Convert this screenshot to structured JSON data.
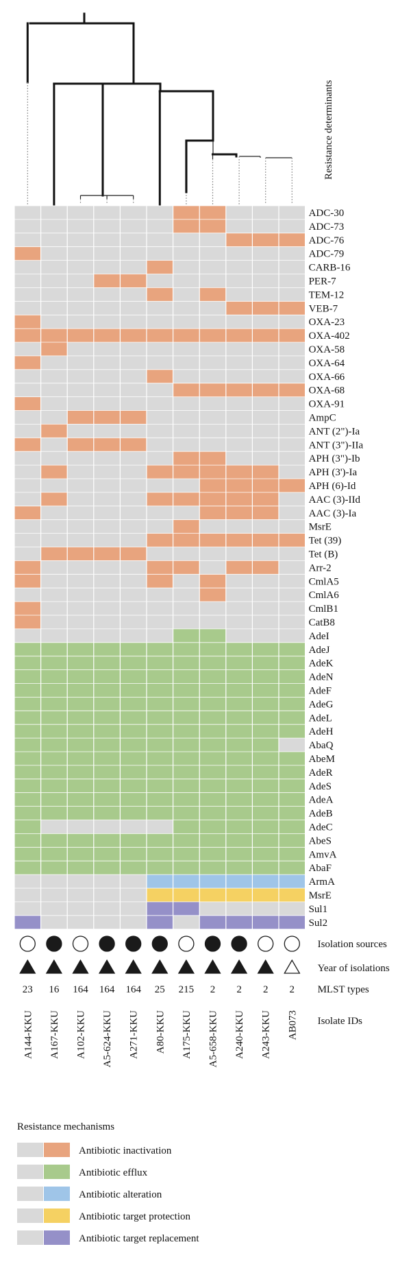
{
  "chart_data": {
    "type": "heatmap",
    "dendrogram_label": "Resistance determinants",
    "isolates": [
      "A144-KKU",
      "A167-KKU",
      "A102-KKU",
      "A5-624-KKU",
      "A271-KKU",
      "A80-KKU",
      "A175-KKU",
      "A5-658-KKU",
      "A240-KKU",
      "A243-KKU",
      "AB073"
    ],
    "mlst_label": "MLST types",
    "mlst": [
      "23",
      "16",
      "164",
      "164",
      "164",
      "25",
      "215",
      "2",
      "2",
      "2",
      "2"
    ],
    "isolate_ids_label": "Isolate IDs",
    "isolation_sources_label": "Isolation sources",
    "isolation_sources": [
      "open",
      "filled",
      "open",
      "filled",
      "filled",
      "filled",
      "open",
      "filled",
      "filled",
      "open",
      "open"
    ],
    "year_label": "Year of isolations",
    "year": [
      "filled",
      "filled",
      "filled",
      "filled",
      "filled",
      "filled",
      "filled",
      "filled",
      "filled",
      "filled",
      "open"
    ],
    "mechanism_colors": {
      "absent": "#d9d9d9",
      "inactivation": "#e8a47e",
      "efflux": "#a8ca8c",
      "alteration": "#9fc5e8",
      "protection": "#f5d162",
      "replacement": "#9590c8"
    },
    "genes": [
      {
        "name": "ADC-30",
        "mechanism": "inactivation",
        "present": [
          0,
          0,
          0,
          0,
          0,
          0,
          1,
          1,
          0,
          0,
          0
        ]
      },
      {
        "name": "ADC-73",
        "mechanism": "inactivation",
        "present": [
          0,
          0,
          0,
          0,
          0,
          0,
          1,
          1,
          0,
          0,
          0
        ]
      },
      {
        "name": "ADC-76",
        "mechanism": "inactivation",
        "present": [
          0,
          0,
          0,
          0,
          0,
          0,
          0,
          0,
          1,
          1,
          1
        ]
      },
      {
        "name": "ADC-79",
        "mechanism": "inactivation",
        "present": [
          1,
          0,
          0,
          0,
          0,
          0,
          0,
          0,
          0,
          0,
          0
        ]
      },
      {
        "name": "CARB-16",
        "mechanism": "inactivation",
        "present": [
          0,
          0,
          0,
          0,
          0,
          1,
          0,
          0,
          0,
          0,
          0
        ]
      },
      {
        "name": "PER-7",
        "mechanism": "inactivation",
        "present": [
          0,
          0,
          0,
          1,
          1,
          0,
          0,
          0,
          0,
          0,
          0
        ]
      },
      {
        "name": "TEM-12",
        "mechanism": "inactivation",
        "present": [
          0,
          0,
          0,
          0,
          0,
          1,
          0,
          1,
          0,
          0,
          0
        ]
      },
      {
        "name": "VEB-7",
        "mechanism": "inactivation",
        "present": [
          0,
          0,
          0,
          0,
          0,
          0,
          0,
          0,
          1,
          1,
          1
        ]
      },
      {
        "name": "OXA-23",
        "mechanism": "inactivation",
        "present": [
          1,
          0,
          0,
          0,
          0,
          0,
          0,
          0,
          0,
          0,
          0
        ]
      },
      {
        "name": "OXA-402",
        "mechanism": "inactivation",
        "present": [
          1,
          1,
          1,
          1,
          1,
          1,
          1,
          1,
          1,
          1,
          1
        ]
      },
      {
        "name": "OXA-58",
        "mechanism": "inactivation",
        "present": [
          0,
          1,
          0,
          0,
          0,
          0,
          0,
          0,
          0,
          0,
          0
        ]
      },
      {
        "name": "OXA-64",
        "mechanism": "inactivation",
        "present": [
          1,
          0,
          0,
          0,
          0,
          0,
          0,
          0,
          0,
          0,
          0
        ]
      },
      {
        "name": "OXA-66",
        "mechanism": "inactivation",
        "present": [
          0,
          0,
          0,
          0,
          0,
          1,
          0,
          0,
          0,
          0,
          0
        ]
      },
      {
        "name": "OXA-68",
        "mechanism": "inactivation",
        "present": [
          0,
          0,
          0,
          0,
          0,
          0,
          1,
          1,
          1,
          1,
          1
        ]
      },
      {
        "name": "OXA-91",
        "mechanism": "inactivation",
        "present": [
          1,
          0,
          0,
          0,
          0,
          0,
          0,
          0,
          0,
          0,
          0
        ]
      },
      {
        "name": "AmpC",
        "mechanism": "inactivation",
        "present": [
          0,
          0,
          1,
          1,
          1,
          0,
          0,
          0,
          0,
          0,
          0
        ]
      },
      {
        "name": "ANT (2\")-Ia",
        "mechanism": "inactivation",
        "present": [
          0,
          1,
          0,
          0,
          0,
          0,
          0,
          0,
          0,
          0,
          0
        ]
      },
      {
        "name": "ANT (3\")-IIa",
        "mechanism": "inactivation",
        "present": [
          1,
          0,
          1,
          1,
          1,
          0,
          0,
          0,
          0,
          0,
          0
        ]
      },
      {
        "name": "APH (3\")-Ib",
        "mechanism": "inactivation",
        "present": [
          0,
          0,
          0,
          0,
          0,
          0,
          1,
          1,
          0,
          0,
          0
        ]
      },
      {
        "name": "APH (3')-Ia",
        "mechanism": "inactivation",
        "present": [
          0,
          1,
          0,
          0,
          0,
          1,
          1,
          1,
          1,
          1,
          0
        ]
      },
      {
        "name": "APH (6)-Id",
        "mechanism": "inactivation",
        "present": [
          0,
          0,
          0,
          0,
          0,
          0,
          0,
          1,
          1,
          1,
          1
        ]
      },
      {
        "name": "AAC (3)-IId",
        "mechanism": "inactivation",
        "present": [
          0,
          1,
          0,
          0,
          0,
          1,
          1,
          1,
          1,
          1,
          0
        ]
      },
      {
        "name": "AAC (3)-Ia",
        "mechanism": "inactivation",
        "present": [
          1,
          0,
          0,
          0,
          0,
          0,
          0,
          1,
          1,
          1,
          0
        ]
      },
      {
        "name": "MsrE",
        "mechanism": "inactivation",
        "present": [
          0,
          0,
          0,
          0,
          0,
          0,
          1,
          0,
          0,
          0,
          0
        ]
      },
      {
        "name": "Tet (39)",
        "mechanism": "inactivation",
        "present": [
          0,
          0,
          0,
          0,
          0,
          1,
          1,
          1,
          1,
          1,
          1
        ]
      },
      {
        "name": "Tet (B)",
        "mechanism": "inactivation",
        "present": [
          0,
          1,
          1,
          1,
          1,
          0,
          0,
          0,
          0,
          0,
          0
        ]
      },
      {
        "name": "Arr-2",
        "mechanism": "inactivation",
        "present": [
          1,
          0,
          0,
          0,
          0,
          1,
          1,
          0,
          1,
          1,
          0
        ]
      },
      {
        "name": "CmlA5",
        "mechanism": "inactivation",
        "present": [
          1,
          0,
          0,
          0,
          0,
          1,
          0,
          1,
          0,
          0,
          0
        ]
      },
      {
        "name": "CmlA6",
        "mechanism": "inactivation",
        "present": [
          0,
          0,
          0,
          0,
          0,
          0,
          0,
          1,
          0,
          0,
          0
        ]
      },
      {
        "name": "CmlB1",
        "mechanism": "inactivation",
        "present": [
          1,
          0,
          0,
          0,
          0,
          0,
          0,
          0,
          0,
          0,
          0
        ]
      },
      {
        "name": "CatB8",
        "mechanism": "inactivation",
        "present": [
          1,
          0,
          0,
          0,
          0,
          0,
          0,
          0,
          0,
          0,
          0
        ]
      },
      {
        "name": "AdeI",
        "mechanism": "efflux",
        "present": [
          0,
          0,
          0,
          0,
          0,
          0,
          1,
          1,
          0,
          0,
          0
        ]
      },
      {
        "name": "AdeJ",
        "mechanism": "efflux",
        "present": [
          1,
          1,
          1,
          1,
          1,
          1,
          1,
          1,
          1,
          1,
          1
        ]
      },
      {
        "name": "AdeK",
        "mechanism": "efflux",
        "present": [
          1,
          1,
          1,
          1,
          1,
          1,
          1,
          1,
          1,
          1,
          1
        ]
      },
      {
        "name": "AdeN",
        "mechanism": "efflux",
        "present": [
          1,
          1,
          1,
          1,
          1,
          1,
          1,
          1,
          1,
          1,
          1
        ]
      },
      {
        "name": "AdeF",
        "mechanism": "efflux",
        "present": [
          1,
          1,
          1,
          1,
          1,
          1,
          1,
          1,
          1,
          1,
          1
        ]
      },
      {
        "name": "AdeG",
        "mechanism": "efflux",
        "present": [
          1,
          1,
          1,
          1,
          1,
          1,
          1,
          1,
          1,
          1,
          1
        ]
      },
      {
        "name": "AdeL",
        "mechanism": "efflux",
        "present": [
          1,
          1,
          1,
          1,
          1,
          1,
          1,
          1,
          1,
          1,
          1
        ]
      },
      {
        "name": "AdeH",
        "mechanism": "efflux",
        "present": [
          1,
          1,
          1,
          1,
          1,
          1,
          1,
          1,
          1,
          1,
          1
        ]
      },
      {
        "name": "AbaQ",
        "mechanism": "efflux",
        "present": [
          1,
          1,
          1,
          1,
          1,
          1,
          1,
          1,
          1,
          1,
          0
        ]
      },
      {
        "name": "AbeM",
        "mechanism": "efflux",
        "present": [
          1,
          1,
          1,
          1,
          1,
          1,
          1,
          1,
          1,
          1,
          1
        ]
      },
      {
        "name": "AdeR",
        "mechanism": "efflux",
        "present": [
          1,
          1,
          1,
          1,
          1,
          1,
          1,
          1,
          1,
          1,
          1
        ]
      },
      {
        "name": "AdeS",
        "mechanism": "efflux",
        "present": [
          1,
          1,
          1,
          1,
          1,
          1,
          1,
          1,
          1,
          1,
          1
        ]
      },
      {
        "name": "AdeA",
        "mechanism": "efflux",
        "present": [
          1,
          1,
          1,
          1,
          1,
          1,
          1,
          1,
          1,
          1,
          1
        ]
      },
      {
        "name": "AdeB",
        "mechanism": "efflux",
        "present": [
          1,
          1,
          1,
          1,
          1,
          1,
          1,
          1,
          1,
          1,
          1
        ]
      },
      {
        "name": "AdeC",
        "mechanism": "efflux",
        "present": [
          1,
          0,
          0,
          0,
          0,
          0,
          1,
          1,
          1,
          1,
          1
        ]
      },
      {
        "name": "AbeS",
        "mechanism": "efflux",
        "present": [
          1,
          1,
          1,
          1,
          1,
          1,
          1,
          1,
          1,
          1,
          1
        ]
      },
      {
        "name": "AmvA",
        "mechanism": "efflux",
        "present": [
          1,
          1,
          1,
          1,
          1,
          1,
          1,
          1,
          1,
          1,
          1
        ]
      },
      {
        "name": "AbaF",
        "mechanism": "efflux",
        "present": [
          1,
          1,
          1,
          1,
          1,
          1,
          1,
          1,
          1,
          1,
          1
        ]
      },
      {
        "name": "ArmA",
        "mechanism": "alteration",
        "present": [
          0,
          0,
          0,
          0,
          0,
          1,
          1,
          1,
          1,
          1,
          1
        ]
      },
      {
        "name": "MsrE",
        "mechanism": "protection",
        "present": [
          0,
          0,
          0,
          0,
          0,
          1,
          1,
          1,
          1,
          1,
          1
        ]
      },
      {
        "name": "Sul1",
        "mechanism": "replacement",
        "present": [
          0,
          0,
          0,
          0,
          0,
          1,
          1,
          0,
          0,
          0,
          0
        ]
      },
      {
        "name": "Sul2",
        "mechanism": "replacement",
        "present": [
          1,
          0,
          0,
          0,
          0,
          1,
          0,
          1,
          1,
          1,
          1
        ]
      }
    ],
    "legend": {
      "title": "Resistance mechanisms",
      "items": [
        {
          "key": "inactivation",
          "label": "Antibiotic inactivation"
        },
        {
          "key": "efflux",
          "label": "Antibiotic efflux"
        },
        {
          "key": "alteration",
          "label": "Antibiotic alteration"
        },
        {
          "key": "protection",
          "label": "Antibiotic target protection"
        },
        {
          "key": "replacement",
          "label": "Antibiotic target replacement"
        }
      ]
    }
  }
}
